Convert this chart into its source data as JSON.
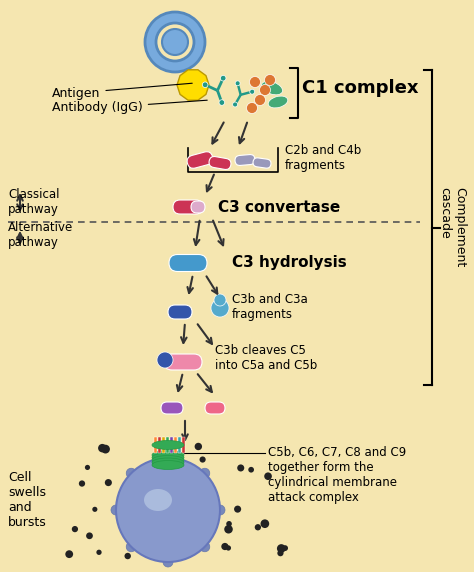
{
  "bg_color": "#F5E6B0",
  "figsize": [
    4.74,
    5.72
  ],
  "dpi": 100,
  "labels": {
    "antigen": "Antigen",
    "antibody": "Antibody (IgG)",
    "c1_complex": "C1 complex",
    "c2b_c4b": "C2b and C4b\nfragments",
    "c3_convertase": "C3 convertase",
    "classical": "Classical\npathway",
    "alternative": "Alternative\npathway",
    "c3_hydrolysis": "C3 hydrolysis",
    "c3b_c3a": "C3b and C3a\nfragments",
    "c3b_cleaves": "C3b cleaves C5\ninto C5a and C5b",
    "cell_swells": "Cell\nswells\nand\nbursts",
    "mac": "C5b, C6, C7, C8 and C9\ntogether form the\ncylindrical membrane\nattack complex",
    "complement": "Complement\ncascade"
  },
  "colors": {
    "cell_blue_outer": "#5588BB",
    "cell_blue_inner": "#77AADD",
    "cell_ring": "#AACCEE",
    "antigen_yellow": "#FFDD00",
    "c1_teal": "#229988",
    "c1_orange": "#DD7733",
    "c1_green": "#44AA77",
    "c2b_red": "#CC3355",
    "c4b_lilac": "#9999BB",
    "c3_red": "#CC3355",
    "c3_pink_half": "#DDAACC",
    "c3b_blue_dark": "#3355AA",
    "c3b_blue": "#4499CC",
    "c3a_teal": "#55AACC",
    "c5_pink": "#EE88AA",
    "c5a_purple": "#9955BB",
    "c5b_pink": "#EE6688",
    "mac_green": "#33AA55",
    "mac_orange": "#FF8833",
    "mac_red": "#CC3333",
    "mac_purple": "#7744AA",
    "mac_teal": "#33AAAA",
    "mac_yellow": "#DDAA00",
    "cell_body_blue": "#7788BB",
    "cell_body_light": "#99AACCCC",
    "dot_color": "#222222"
  }
}
